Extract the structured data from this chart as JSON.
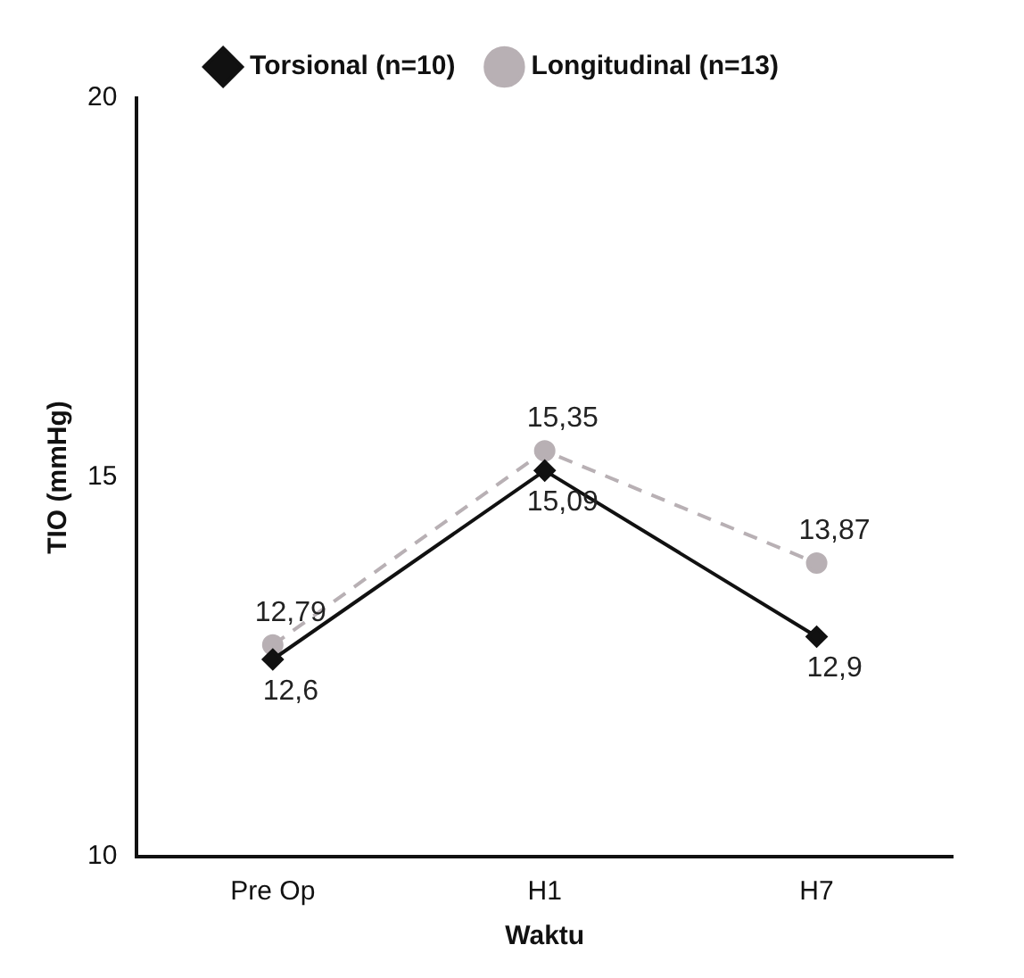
{
  "chart_data": {
    "type": "line",
    "xlabel": "Waktu",
    "ylabel": "TIO (mmHg)",
    "categories": [
      "Pre Op",
      "H1",
      "H7"
    ],
    "series": [
      {
        "name": "Torsional (n=10)",
        "color": "#111111",
        "values": [
          12.6,
          15.09,
          12.9
        ],
        "value_labels": [
          "12,6",
          "15,09",
          "12,9"
        ],
        "marker": "diamond",
        "line_style": "solid"
      },
      {
        "name": "Longitudinal (n=13)",
        "color": "#b8b0b4",
        "values": [
          12.79,
          15.35,
          13.87
        ],
        "value_labels": [
          "12,79",
          "15,35",
          "13,87"
        ],
        "marker": "circle",
        "line_style": "dashed"
      }
    ],
    "ylim": [
      10,
      20
    ],
    "yticks": [
      10,
      15,
      20
    ],
    "grid": false,
    "legend": "top"
  }
}
